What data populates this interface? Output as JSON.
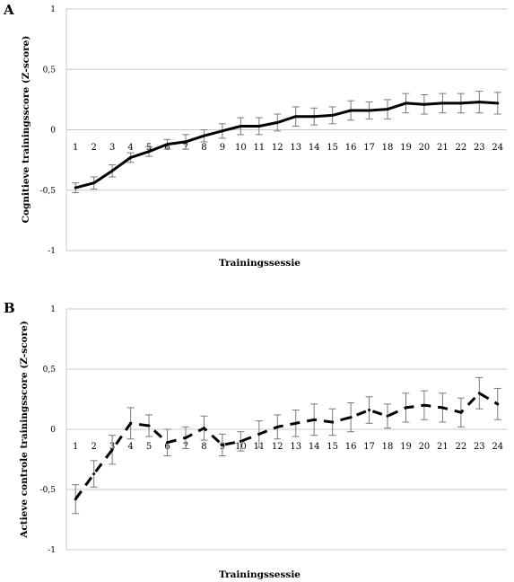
{
  "chart_data": [
    {
      "panel_label": "A",
      "type": "line",
      "xlabel": "Trainingssessie",
      "ylabel": "Cognitieve trainingsscore (Z-score)",
      "ylim": [
        -1,
        1
      ],
      "yticks": [
        "-1",
        "-0,5",
        "0",
        "0,5",
        "1"
      ],
      "x": [
        "1",
        "2",
        "3",
        "4",
        "5",
        "6",
        "7",
        "8",
        "9",
        "10",
        "11",
        "12",
        "13",
        "14",
        "15",
        "16",
        "17",
        "18",
        "19",
        "20",
        "21",
        "22",
        "23",
        "24"
      ],
      "values": [
        -0.48,
        -0.44,
        -0.34,
        -0.23,
        -0.18,
        -0.12,
        -0.1,
        -0.05,
        -0.01,
        0.03,
        0.03,
        0.06,
        0.11,
        0.11,
        0.12,
        0.16,
        0.16,
        0.17,
        0.22,
        0.21,
        0.22,
        0.22,
        0.23,
        0.22
      ],
      "errors": [
        0.04,
        0.05,
        0.05,
        0.04,
        0.04,
        0.04,
        0.06,
        0.05,
        0.06,
        0.07,
        0.07,
        0.07,
        0.08,
        0.07,
        0.07,
        0.08,
        0.07,
        0.08,
        0.08,
        0.08,
        0.08,
        0.08,
        0.09,
        0.09
      ],
      "line_style": "solid",
      "grid": true
    },
    {
      "panel_label": "B",
      "type": "line",
      "xlabel": "Trainingssessie",
      "ylabel": "Actieve controle trainingsscore (Z-score)",
      "ylim": [
        -1,
        1
      ],
      "yticks": [
        "-1",
        "-0,5",
        "0",
        "0,5",
        "1"
      ],
      "x": [
        "1",
        "2",
        "3",
        "4",
        "5",
        "6",
        "7",
        "8",
        "9",
        "10",
        "11",
        "12",
        "13",
        "14",
        "15",
        "16",
        "17",
        "18",
        "19",
        "20",
        "21",
        "22",
        "23",
        "24"
      ],
      "values": [
        -0.58,
        -0.37,
        -0.17,
        0.05,
        0.03,
        -0.11,
        -0.07,
        0.01,
        -0.13,
        -0.1,
        -0.04,
        0.02,
        0.05,
        0.08,
        0.06,
        0.1,
        0.16,
        0.11,
        0.18,
        0.2,
        0.18,
        0.14,
        0.3,
        0.21
      ],
      "errors": [
        0.12,
        0.11,
        0.12,
        0.13,
        0.09,
        0.11,
        0.09,
        0.1,
        0.09,
        0.08,
        0.11,
        0.1,
        0.11,
        0.13,
        0.11,
        0.12,
        0.11,
        0.1,
        0.12,
        0.12,
        0.12,
        0.12,
        0.13,
        0.13
      ],
      "line_style": "dashed",
      "grid": true
    }
  ]
}
